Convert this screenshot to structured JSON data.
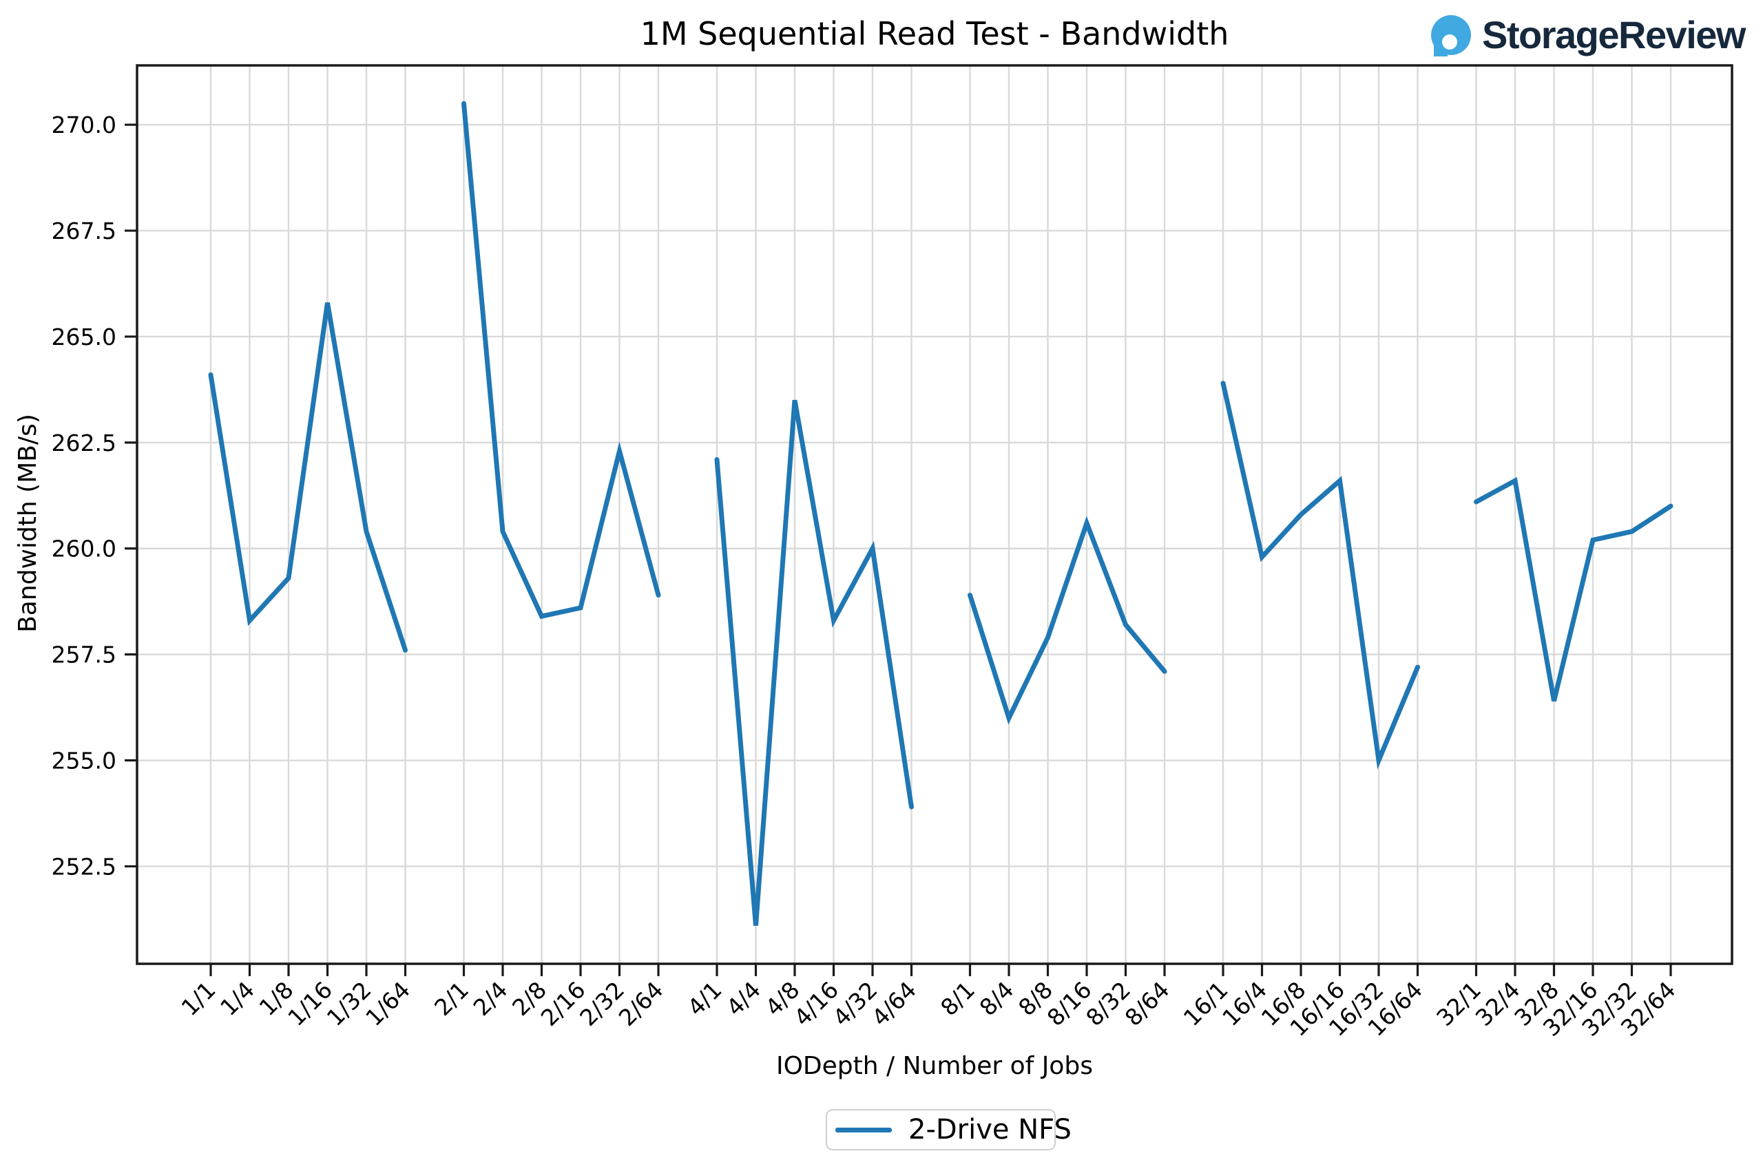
{
  "header": {
    "logo_text": "StorageReview",
    "logo_blue": "#41a9e1",
    "logo_navy": "#16283c"
  },
  "chart_data": {
    "type": "line",
    "title": "1M Sequential Read Test - Bandwidth",
    "xlabel": "IODepth / Number of Jobs",
    "ylabel": "Bandwidth (MB/s)",
    "categories": [
      "1/1",
      "1/4",
      "1/8",
      "1/16",
      "1/32",
      "1/64",
      "2/1",
      "2/4",
      "2/8",
      "2/16",
      "2/32",
      "2/64",
      "4/1",
      "4/4",
      "4/8",
      "4/16",
      "4/32",
      "4/64",
      "8/1",
      "8/4",
      "8/8",
      "8/16",
      "8/32",
      "8/64",
      "16/1",
      "16/4",
      "16/8",
      "16/16",
      "16/32",
      "16/64",
      "32/1",
      "32/4",
      "32/8",
      "32/16",
      "32/32",
      "32/64"
    ],
    "series": [
      {
        "name": "2-Drive NFS",
        "color": "#1f77b4",
        "values": [
          264.1,
          258.3,
          259.3,
          265.8,
          260.4,
          257.6,
          270.5,
          260.4,
          258.4,
          258.6,
          262.3,
          258.9,
          262.1,
          251.1,
          263.5,
          258.3,
          260.0,
          253.9,
          258.9,
          256.0,
          257.9,
          260.6,
          258.2,
          257.1,
          263.9,
          259.8,
          260.8,
          261.6,
          255.0,
          257.2,
          261.1,
          261.6,
          256.4,
          260.2,
          260.4,
          261.0
        ]
      }
    ],
    "groups": 6,
    "points_per_group": 6,
    "gap_between_groups_units": 1.5,
    "ylim": [
      250.2,
      271.4
    ],
    "yticks": [
      252.5,
      255.0,
      257.5,
      260.0,
      262.5,
      265.0,
      267.5,
      270.0
    ],
    "ytick_format_decimals": 1,
    "grid": true,
    "grid_color": "#d9d9d9",
    "spine_color": "#1a1a1a",
    "legend_position": "bottom-center"
  },
  "legend": {
    "label": "2-Drive NFS"
  }
}
